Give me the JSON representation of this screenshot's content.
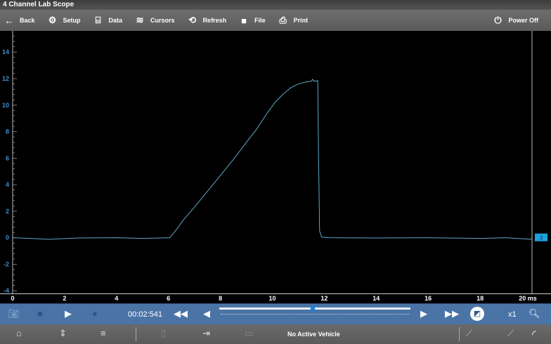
{
  "window": {
    "title": "4 Channel Lab Scope"
  },
  "toolbar": {
    "items": [
      {
        "label": "Back",
        "icon": "arrow-left-icon"
      },
      {
        "label": "Setup",
        "icon": "gears-icon"
      },
      {
        "label": "Data",
        "icon": "data-icon"
      },
      {
        "label": "Cursors",
        "icon": "cursors-icon"
      },
      {
        "label": "Refresh",
        "icon": "refresh-icon"
      },
      {
        "label": "File",
        "icon": "folder-icon"
      },
      {
        "label": "Print",
        "icon": "printer-icon"
      }
    ],
    "power_off": "Power Off"
  },
  "chart_data": {
    "type": "line",
    "xlabel": "",
    "ylabel": "",
    "x_unit": "ms",
    "xlim": [
      0,
      20
    ],
    "ylim": [
      -4.2,
      15.6
    ],
    "xticks": [
      "0",
      "2",
      "4",
      "6",
      "8",
      "10",
      "12",
      "14",
      "16",
      "18",
      "20 ms"
    ],
    "yticks": [
      "14",
      "12",
      "10",
      "8",
      "6",
      "4",
      "2",
      "0",
      "-2",
      "-4"
    ],
    "series": [
      {
        "color": "#5fa8c8",
        "points": [
          [
            0,
            0
          ],
          [
            0.7,
            -0.05
          ],
          [
            1.4,
            -0.12
          ],
          [
            2.5,
            -0.02
          ],
          [
            4,
            0
          ],
          [
            5,
            -0.05
          ],
          [
            6.05,
            0
          ],
          [
            6.3,
            0.6
          ],
          [
            6.6,
            1.4
          ],
          [
            7,
            2.3
          ],
          [
            7.5,
            3.5
          ],
          [
            8,
            4.7
          ],
          [
            8.5,
            5.9
          ],
          [
            9,
            7.2
          ],
          [
            9.4,
            8.2
          ],
          [
            9.8,
            9.4
          ],
          [
            10.1,
            10.2
          ],
          [
            10.4,
            10.8
          ],
          [
            10.7,
            11.3
          ],
          [
            11,
            11.6
          ],
          [
            11.3,
            11.75
          ],
          [
            11.5,
            11.8
          ],
          [
            11.55,
            11.95
          ],
          [
            11.6,
            11.8
          ],
          [
            11.75,
            11.85
          ],
          [
            11.78,
            6
          ],
          [
            11.82,
            0.5
          ],
          [
            11.9,
            0.05
          ],
          [
            12.2,
            0
          ],
          [
            14,
            -0.02
          ],
          [
            16,
            0
          ],
          [
            18,
            -0.05
          ],
          [
            19,
            0
          ],
          [
            20,
            -0.12
          ]
        ]
      }
    ],
    "channel_marker": {
      "label": "3",
      "color": "#1ea0e0",
      "value": 0
    }
  },
  "controls": {
    "time": "00:02:541",
    "zoom": "x1",
    "position_fraction": 0.49
  },
  "bottom": {
    "status": "No Active Vehicle"
  },
  "colors": {
    "axis_label": "#3c8fd0",
    "control_bar": "#4a74a6",
    "trace": "#5fa8c8"
  }
}
